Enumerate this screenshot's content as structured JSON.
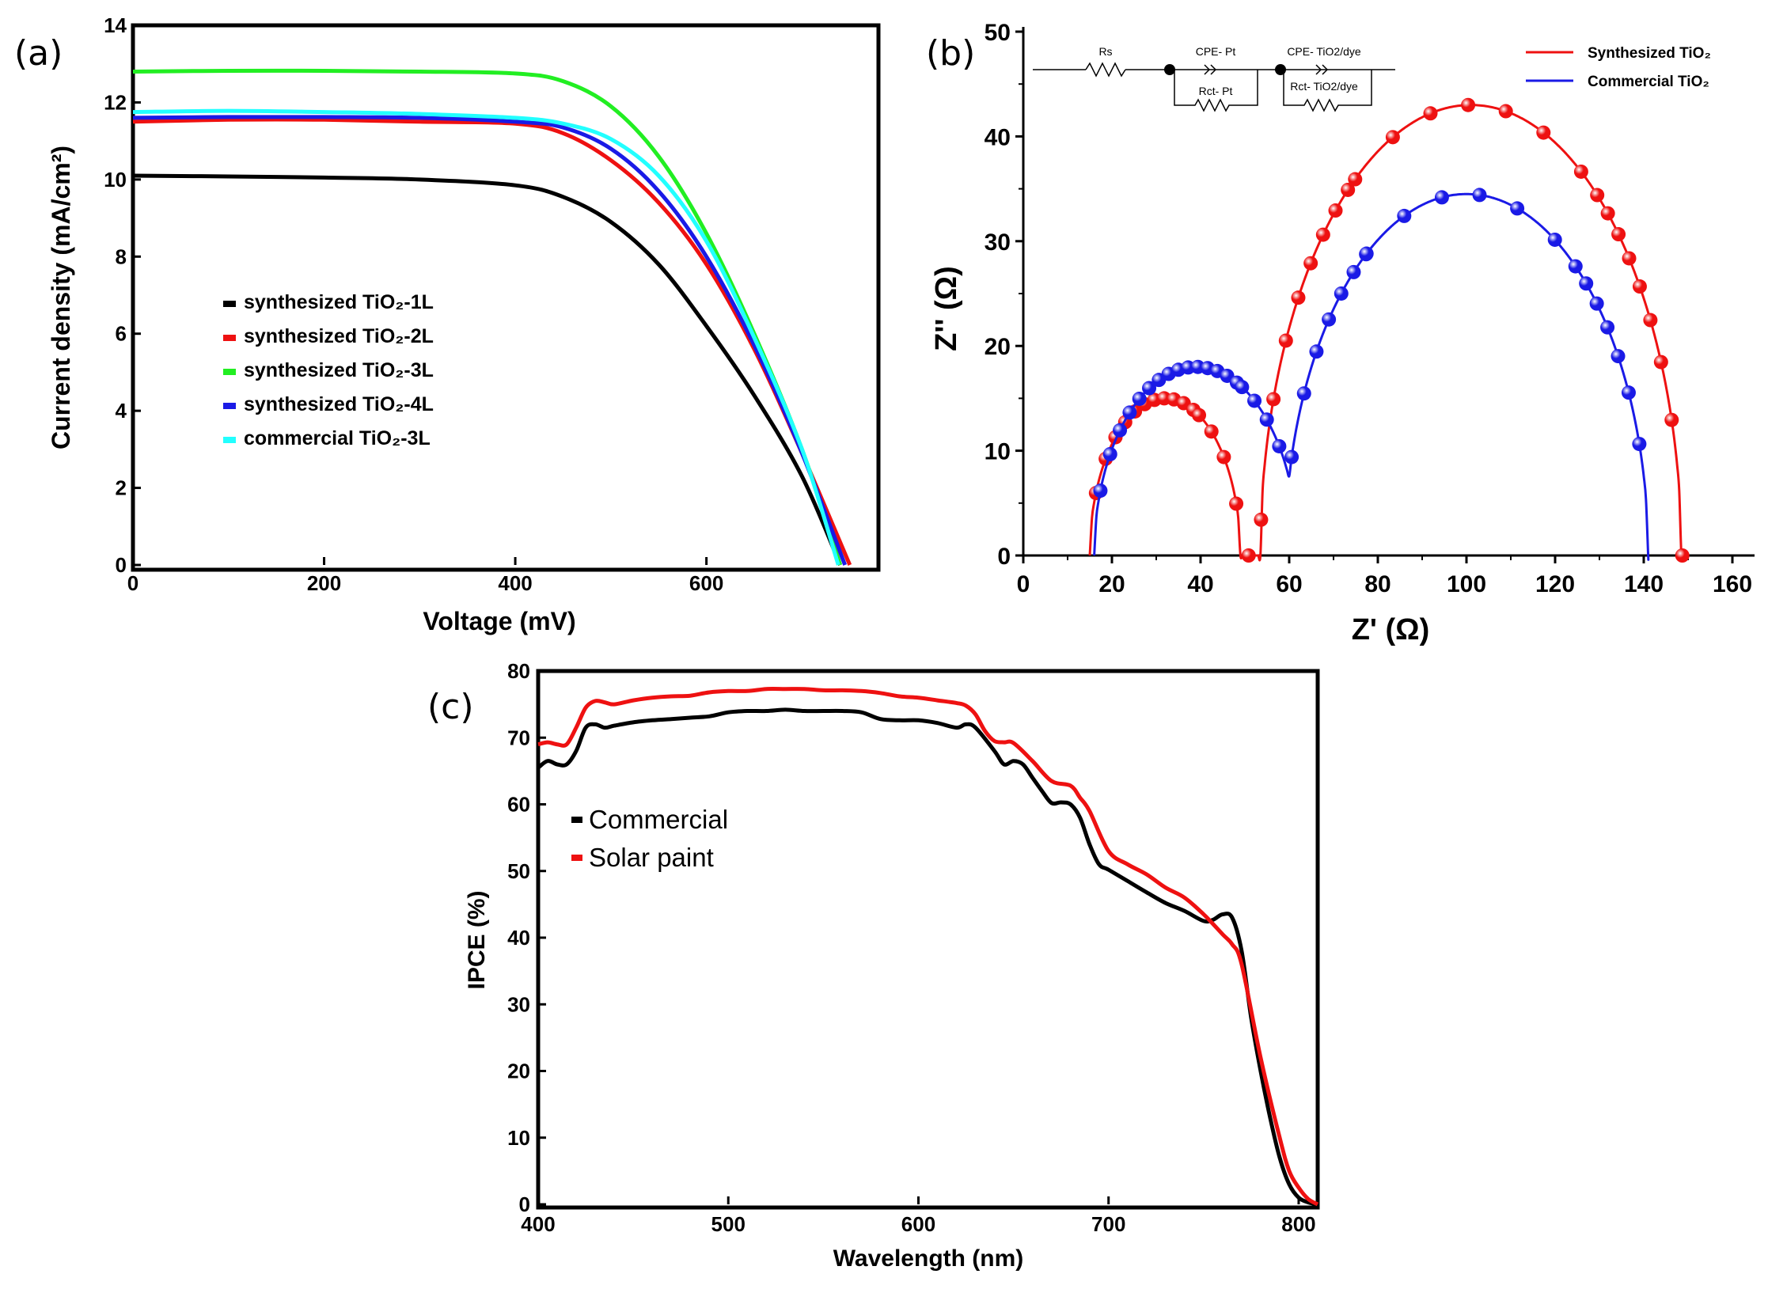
{
  "colors": {
    "black": "#000000",
    "red": "#ee1111",
    "green": "#22ee22",
    "blue": "#1a1ae6",
    "cyan": "#22ffff",
    "red_marker": "#e82020",
    "blue_marker": "#2323e0"
  },
  "chart_data": [
    {
      "type": "line",
      "panel_label": "(a)",
      "xlabel": "Voltage (mV)",
      "ylabel": "Current density (mA/cm²)",
      "xlim": [
        0,
        780
      ],
      "ylim": [
        0,
        14
      ],
      "xticks": [
        "0",
        "200",
        "400",
        "600"
      ],
      "yticks": [
        "0",
        "2",
        "4",
        "6",
        "8",
        "10",
        "12",
        "14"
      ],
      "legend_position": "center-left",
      "series": [
        {
          "name": "synthesized TiO₂-1L",
          "color": "#000000",
          "isc": 10.1,
          "voc": 740,
          "x": [
            0,
            100,
            200,
            300,
            400,
            450,
            500,
            550,
            600,
            650,
            700,
            740
          ],
          "y": [
            10.1,
            10.08,
            10.05,
            10.0,
            9.85,
            9.55,
            8.9,
            7.8,
            6.2,
            4.4,
            2.3,
            0
          ]
        },
        {
          "name": "synthesized TiO₂-2L",
          "color": "#ee1111",
          "isc": 11.5,
          "voc": 750,
          "x": [
            0,
            100,
            200,
            300,
            400,
            450,
            500,
            550,
            600,
            650,
            700,
            750
          ],
          "y": [
            11.5,
            11.55,
            11.55,
            11.5,
            11.45,
            11.2,
            10.5,
            9.4,
            7.8,
            5.6,
            2.9,
            0
          ]
        },
        {
          "name": "synthesized TiO₂-3L",
          "color": "#22ee22",
          "isc": 12.8,
          "voc": 740,
          "x": [
            0,
            100,
            200,
            300,
            400,
            450,
            500,
            550,
            600,
            650,
            700,
            740
          ],
          "y": [
            12.8,
            12.82,
            12.82,
            12.8,
            12.75,
            12.55,
            11.9,
            10.6,
            8.6,
            6.0,
            3.0,
            0
          ]
        },
        {
          "name": "synthesized TiO₂-4L",
          "color": "#1a1ae6",
          "isc": 11.6,
          "voc": 745,
          "x": [
            0,
            100,
            200,
            300,
            400,
            450,
            500,
            550,
            600,
            650,
            700,
            745
          ],
          "y": [
            11.6,
            11.62,
            11.62,
            11.6,
            11.5,
            11.35,
            10.8,
            9.7,
            8.0,
            5.7,
            2.9,
            0
          ]
        },
        {
          "name": "commercial TiO₂-3L",
          "color": "#22ffff",
          "isc": 11.75,
          "voc": 738,
          "x": [
            0,
            100,
            200,
            300,
            400,
            450,
            500,
            550,
            600,
            650,
            700,
            738
          ],
          "y": [
            11.75,
            11.78,
            11.75,
            11.7,
            11.6,
            11.45,
            11.05,
            10.1,
            8.4,
            5.9,
            3.0,
            0
          ]
        }
      ]
    },
    {
      "type": "scatter",
      "panel_label": "(b)",
      "xlabel": "Z' (Ω)",
      "ylabel": "Z'' (Ω)",
      "xlim": [
        0,
        165
      ],
      "ylim": [
        0,
        50
      ],
      "xticks": [
        "0",
        "20",
        "40",
        "60",
        "80",
        "100",
        "120",
        "140",
        "160"
      ],
      "yticks": [
        "0",
        "10",
        "20",
        "30",
        "40",
        "50"
      ],
      "legend_position": "top-right",
      "circuit": {
        "rs": "Rs",
        "cpe_pt": "CPE- Pt",
        "rct_pt": "Rct- Pt",
        "cpe_dye": "CPE- TiO2/dye",
        "rct_dye": "Rct- TiO2/dye"
      },
      "series": [
        {
          "name": "Synthesized TiO₂",
          "color": "#ee1111",
          "r0": 15,
          "arc1": {
            "center": 32,
            "r": 17,
            "peak": 15
          },
          "arc2": {
            "center": 101,
            "r": 47.5,
            "peak": 43
          },
          "z_end": 149
        },
        {
          "name": "Commercial TiO₂",
          "color": "#1a1ae6",
          "r0": 16,
          "arc1": {
            "center": 39,
            "r": 23,
            "peak": 18
          },
          "arc2": {
            "center": 100,
            "r": 41,
            "peak": 34.5
          },
          "z_end": 141
        }
      ]
    },
    {
      "type": "line",
      "panel_label": "(c)",
      "xlabel": "Wavelength (nm)",
      "ylabel": "IPCE (%)",
      "xlim": [
        400,
        810
      ],
      "ylim": [
        0,
        80
      ],
      "xticks": [
        "400",
        "500",
        "600",
        "700",
        "800"
      ],
      "yticks": [
        "0",
        "10",
        "20",
        "30",
        "40",
        "50",
        "60",
        "70",
        "80"
      ],
      "legend_position": "center-left",
      "series": [
        {
          "name": "Commercial",
          "color": "#000000",
          "x": [
            400,
            405,
            410,
            415,
            420,
            425,
            430,
            435,
            440,
            450,
            460,
            470,
            480,
            490,
            500,
            510,
            520,
            530,
            540,
            550,
            560,
            570,
            580,
            590,
            600,
            610,
            620,
            625,
            630,
            640,
            645,
            650,
            655,
            660,
            665,
            670,
            675,
            680,
            685,
            690,
            695,
            700,
            710,
            720,
            730,
            740,
            750,
            755,
            760,
            765,
            770,
            775,
            780,
            785,
            790,
            795,
            800,
            805,
            810
          ],
          "y": [
            65.5,
            66.5,
            66,
            66,
            68,
            71.5,
            72,
            71.5,
            71.8,
            72.3,
            72.6,
            72.8,
            73,
            73.2,
            73.8,
            74,
            74,
            74.2,
            74,
            74,
            74,
            73.8,
            72.8,
            72.6,
            72.6,
            72.2,
            71.5,
            72,
            71.5,
            68,
            66,
            66.5,
            66,
            64,
            62,
            60.2,
            60.3,
            60,
            58,
            54,
            51,
            50.2,
            48.5,
            46.8,
            45.2,
            44,
            42.5,
            42.7,
            43.5,
            43,
            38,
            28,
            20,
            13,
            7,
            3,
            1,
            0.3,
            0
          ]
        },
        {
          "name": "Solar paint",
          "color": "#ee1111",
          "x": [
            400,
            405,
            410,
            415,
            420,
            425,
            430,
            435,
            440,
            450,
            460,
            470,
            480,
            490,
            500,
            510,
            520,
            530,
            540,
            550,
            560,
            570,
            580,
            590,
            600,
            610,
            620,
            625,
            630,
            635,
            640,
            645,
            650,
            660,
            670,
            680,
            685,
            690,
            700,
            710,
            720,
            730,
            740,
            750,
            760,
            765,
            770,
            780,
            790,
            795,
            800,
            805,
            810
          ],
          "y": [
            69,
            69.3,
            69,
            69,
            71.5,
            74.5,
            75.5,
            75.3,
            75,
            75.6,
            76,
            76.2,
            76.3,
            76.8,
            77,
            77,
            77.3,
            77.3,
            77.3,
            77.1,
            77.1,
            77,
            76.7,
            76.2,
            76,
            75.6,
            75.2,
            74.8,
            73.5,
            71,
            69.5,
            69.3,
            69.2,
            66.5,
            63.5,
            62.8,
            61,
            59,
            53,
            51,
            49.5,
            47.5,
            46,
            43.5,
            40.5,
            39,
            36,
            22,
            10,
            5,
            2.5,
            0.8,
            0
          ]
        }
      ]
    }
  ]
}
